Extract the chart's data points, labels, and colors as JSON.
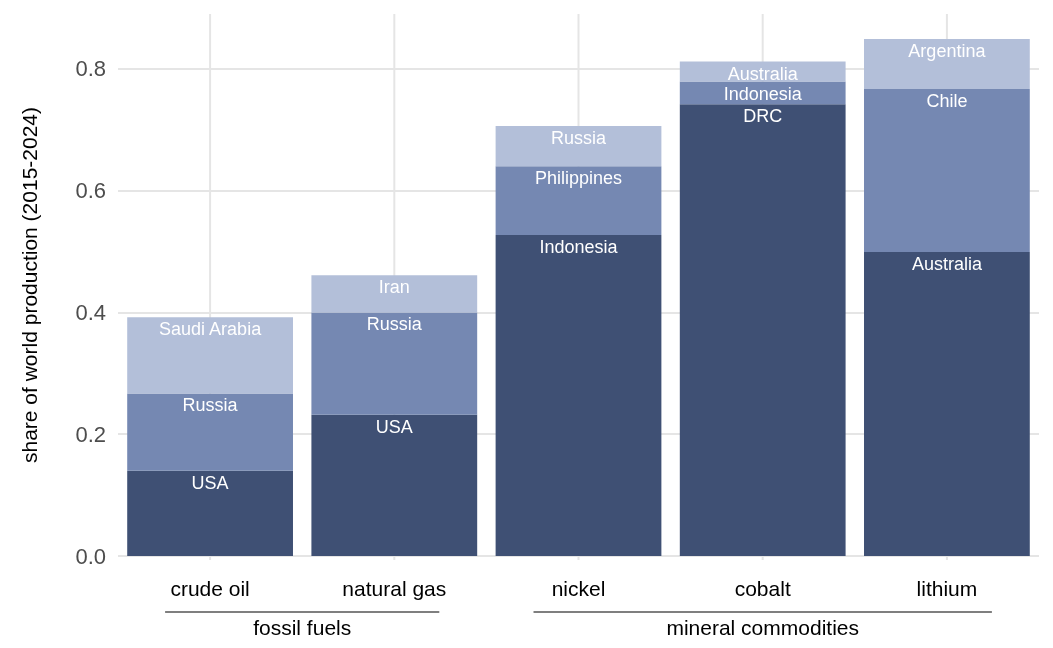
{
  "chart_data": {
    "type": "bar",
    "stacked": true,
    "ylabel": "share of world production (2015-2024)",
    "categories": [
      "crude oil",
      "natural gas",
      "nickel",
      "cobalt",
      "lithium"
    ],
    "series": [
      {
        "color": "#3f5074",
        "values": [
          0.14,
          0.232,
          0.527,
          0.742,
          0.499
        ]
      },
      {
        "color": "#7588b2",
        "values": [
          0.127,
          0.168,
          0.113,
          0.037,
          0.268
        ]
      },
      {
        "color": "#b3bfd9",
        "values": [
          0.125,
          0.061,
          0.066,
          0.033,
          0.082
        ]
      }
    ],
    "ylim": [
      0,
      0.89
    ],
    "yticks": [
      {
        "value": 0,
        "label": "0.0"
      },
      {
        "value": 0.2,
        "label": "0.2"
      },
      {
        "value": 0.4,
        "label": "0.4"
      },
      {
        "value": 0.6,
        "label": "0.6"
      },
      {
        "value": 0.8,
        "label": "0.8"
      }
    ],
    "grid": true,
    "annotations": [
      {
        "text": "USA",
        "x": "crude oil",
        "y": 0.14
      },
      {
        "text": "Russia",
        "x": "crude oil",
        "y": 0.267
      },
      {
        "text": "Saudi Arabia",
        "x": "crude oil",
        "y": 0.392
      },
      {
        "text": "USA",
        "x": "natural gas",
        "y": 0.232
      },
      {
        "text": "Russia",
        "x": "natural gas",
        "y": 0.4
      },
      {
        "text": "Iran",
        "x": "natural gas",
        "y": 0.461
      },
      {
        "text": "Indonesia",
        "x": "nickel",
        "y": 0.527
      },
      {
        "text": "Philippines",
        "x": "nickel",
        "y": 0.64
      },
      {
        "text": "Russia",
        "x": "nickel",
        "y": 0.706
      },
      {
        "text": "DRC",
        "x": "cobalt",
        "y": 0.742
      },
      {
        "text": "Indonesia",
        "x": "cobalt",
        "y": 0.779
      },
      {
        "text": "Australia",
        "x": "cobalt",
        "y": 0.812
      },
      {
        "text": "Australia",
        "x": "lithium",
        "y": 0.499
      },
      {
        "text": "Chile",
        "x": "lithium",
        "y": 0.767
      },
      {
        "text": "Argentina",
        "x": "lithium",
        "y": 0.849
      },
      "fossil fuels",
      "mineral commodities"
    ]
  }
}
